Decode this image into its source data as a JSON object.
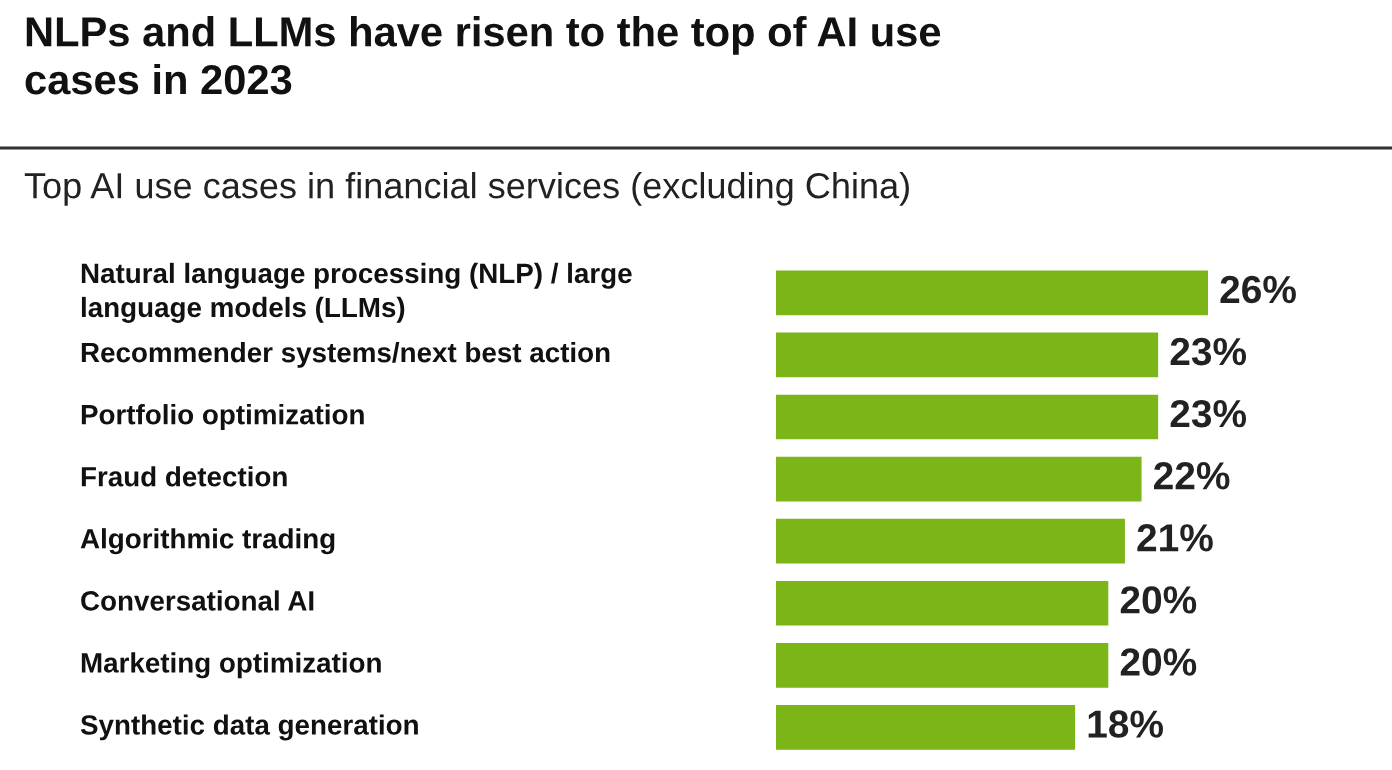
{
  "chart_data": {
    "type": "bar",
    "orientation": "horizontal",
    "title": "NLPs and LLMs have risen to the top of AI use\ncases in 2023",
    "subtitle": "Top AI use cases in financial services (excluding China)",
    "categories": [
      "Natural language processing (NLP) / large\nlanguage models (LLMs)",
      "Recommender systems/next best action",
      "Portfolio optimization",
      "Fraud detection",
      "Algorithmic trading",
      "Conversational AI",
      "Marketing optimization",
      "Synthetic data generation"
    ],
    "values": [
      26,
      23,
      23,
      22,
      21,
      20,
      20,
      18
    ],
    "value_labels": [
      "26%",
      "23%",
      "23%",
      "22%",
      "21%",
      "20%",
      "20%",
      "18%"
    ],
    "color": "#7cb518"
  }
}
